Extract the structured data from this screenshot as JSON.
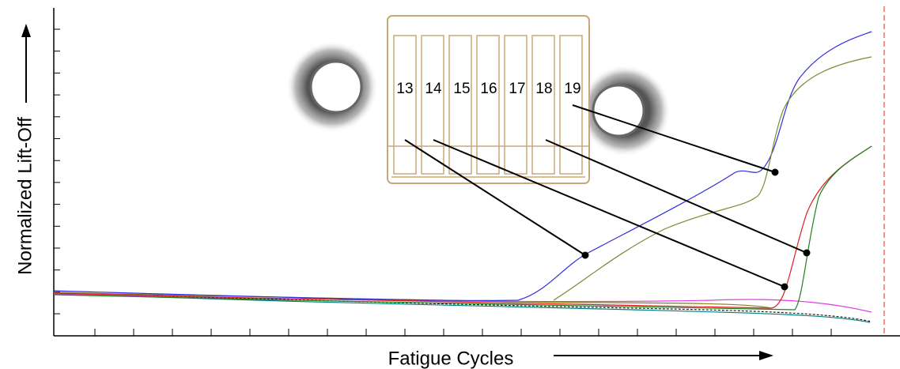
{
  "y_axis_label": "Normalized Lift-Off",
  "x_axis_label": "Fatigue Cycles",
  "specimen_labels": [
    "13",
    "14",
    "15",
    "16",
    "17",
    "18",
    "19"
  ]
}
